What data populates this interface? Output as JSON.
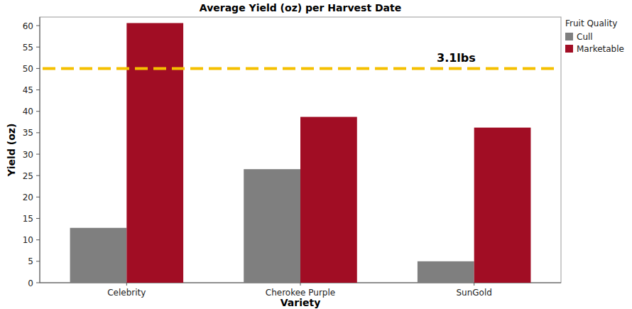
{
  "chart_data": {
    "type": "bar",
    "title": "Average Yield (oz) per Harvest Date",
    "x_label": "Variety",
    "y_label": "Yield (oz)",
    "categories": [
      "Celebrity",
      "Cherokee Purple",
      "SunGold"
    ],
    "series": [
      {
        "name": "Cull",
        "color": "#7f7f7f",
        "values": [
          12.8,
          26.5,
          5.0
        ]
      },
      {
        "name": "Marketable",
        "color": "#a10d24",
        "values": [
          60.6,
          38.7,
          36.2
        ]
      }
    ],
    "ylim": [
      0,
      62
    ],
    "yticks": [
      0,
      5,
      10,
      15,
      20,
      25,
      30,
      35,
      40,
      45,
      50,
      55,
      60
    ],
    "grid": false,
    "legend": "top-right",
    "legend_title": "Fruit Quality",
    "annotations": [
      {
        "text": "3.1lbs",
        "y": 50
      }
    ]
  }
}
